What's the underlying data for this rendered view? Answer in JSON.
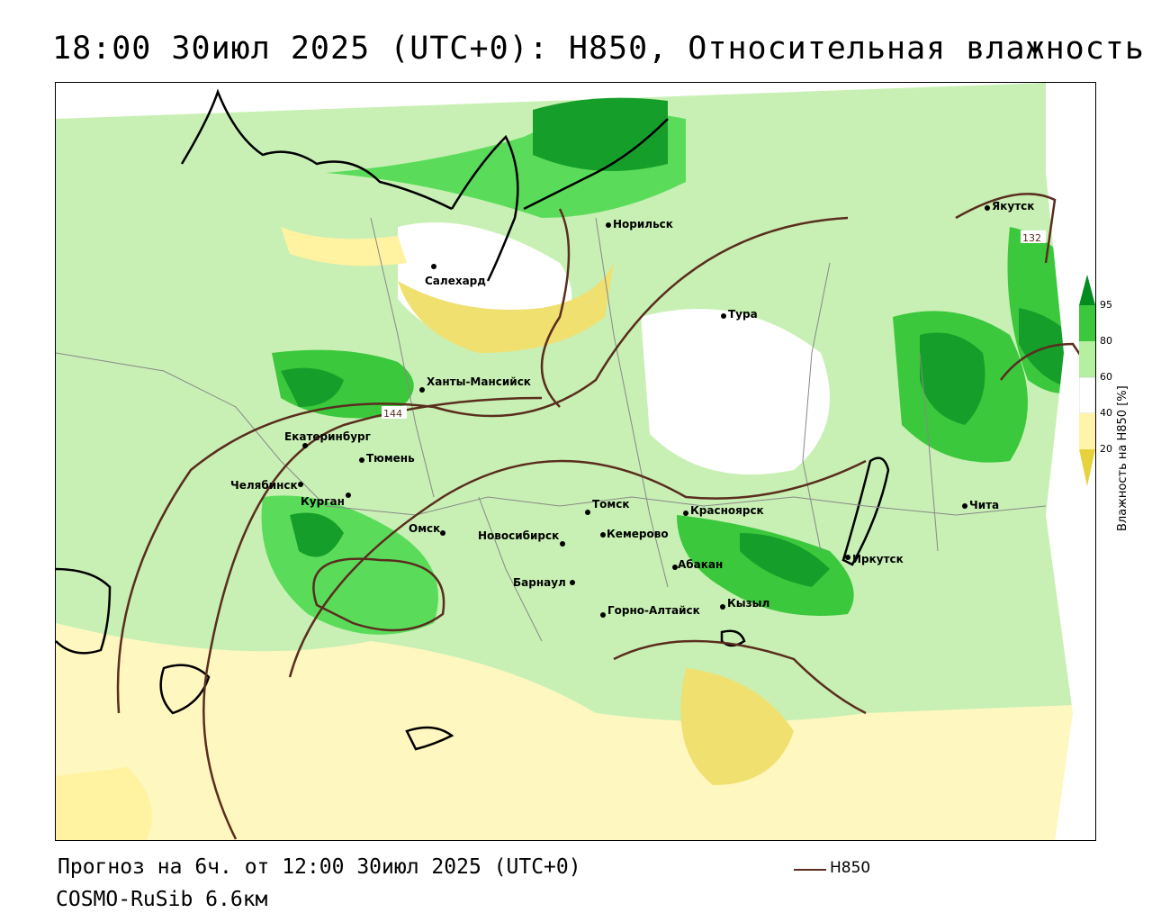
{
  "title": "18:00 30июл 2025 (UTC+0): H850, Относительная влажность",
  "footer": {
    "forecast": "Прогноз на 6ч. от 12:00 30июл 2025 (UTC+0)",
    "model": "COSMO-RuSib 6.6км"
  },
  "legend": {
    "line_label": "H850",
    "line_color": "#5a2d1e"
  },
  "colorbar": {
    "title": "Влажность на H850 [%]",
    "ticks": [
      "95",
      "80",
      "60",
      "40",
      "20"
    ],
    "colors": [
      "#008c1e",
      "#3cc83c",
      "#b4f0a0",
      "#ffffff",
      "#fff5aa",
      "#e6d23c"
    ]
  },
  "contour_labels": [
    "144",
    "132"
  ],
  "cities": [
    {
      "name": "Якутск"
    },
    {
      "name": "Норильск"
    },
    {
      "name": "Салехард"
    },
    {
      "name": "Тура"
    },
    {
      "name": "Ханты-Мансийск"
    },
    {
      "name": "Екатеринбург"
    },
    {
      "name": "Тюмень"
    },
    {
      "name": "Челябинск"
    },
    {
      "name": "Курган"
    },
    {
      "name": "Омск"
    },
    {
      "name": "Новосибирск"
    },
    {
      "name": "Томск"
    },
    {
      "name": "Кемерово"
    },
    {
      "name": "Красноярск"
    },
    {
      "name": "Барнаул"
    },
    {
      "name": "Абакан"
    },
    {
      "name": "Иркутск"
    },
    {
      "name": "Чита"
    },
    {
      "name": "Кызыл"
    },
    {
      "name": "Горно-Алтайск"
    }
  ]
}
